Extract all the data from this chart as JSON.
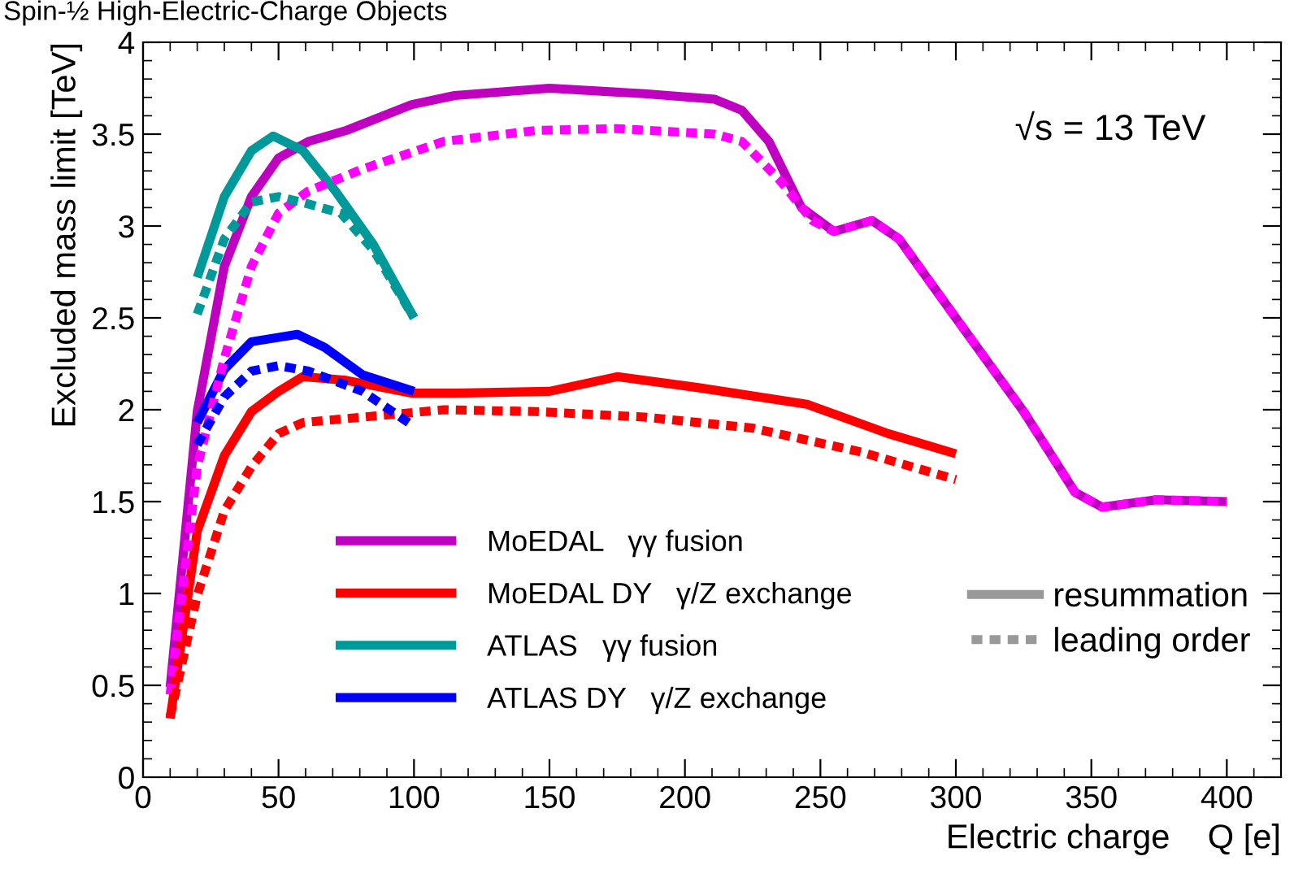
{
  "chart_data": {
    "type": "line",
    "title": "Spin-½ High-Electric-Charge Objects",
    "xlabel": "Electric charge    Q [e]",
    "ylabel": "Excluded mass limit [TeV]",
    "xlim": [
      0,
      420
    ],
    "ylim": [
      0,
      4
    ],
    "xticks": [
      0,
      50,
      100,
      150,
      200,
      250,
      300,
      350,
      400
    ],
    "yticks": [
      0,
      0.5,
      1,
      1.5,
      2,
      2.5,
      3,
      3.5,
      4
    ],
    "grid": false,
    "legend": "bottom left",
    "annotations": [
      "√s = 13 TeV",
      "resummation",
      "leading order"
    ],
    "series": [
      {
        "name": "MoEDAL   γγ fusion",
        "color": "#c000c0",
        "line_style": "solid",
        "x": [
          10,
          20,
          30,
          40,
          50,
          61,
          75,
          99,
          115,
          150,
          185,
          211,
          221,
          231,
          243,
          255,
          269,
          279,
          299,
          325,
          344,
          354,
          374,
          400
        ],
        "values": [
          0.49,
          1.99,
          2.78,
          3.16,
          3.37,
          3.46,
          3.52,
          3.66,
          3.71,
          3.75,
          3.72,
          3.69,
          3.63,
          3.46,
          3.1,
          2.97,
          3.03,
          2.93,
          2.52,
          1.99,
          1.55,
          1.47,
          1.51,
          1.5
        ]
      },
      {
        "name": "MoEDAL DY   γ/Z exchange",
        "color": "#ff0000",
        "line_style": "solid",
        "x": [
          10,
          20,
          30,
          40,
          50,
          59,
          75,
          99,
          115,
          150,
          175,
          205,
          245,
          275,
          300
        ],
        "values": [
          0.32,
          1.34,
          1.75,
          1.99,
          2.1,
          2.18,
          2.16,
          2.09,
          2.09,
          2.1,
          2.18,
          2.12,
          2.03,
          1.87,
          1.76
        ]
      },
      {
        "name": "ATLAS   γγ fusion",
        "color": "#009999",
        "line_style": "solid",
        "x": [
          20,
          30,
          40,
          48,
          59,
          71,
          85,
          100
        ],
        "values": [
          2.72,
          3.16,
          3.41,
          3.49,
          3.41,
          3.19,
          2.9,
          2.5
        ]
      },
      {
        "name": "ATLAS DY   γ/Z exchange",
        "color": "#0000ff",
        "line_style": "solid",
        "x": [
          20,
          30,
          40,
          57,
          67,
          81,
          100
        ],
        "values": [
          1.93,
          2.22,
          2.37,
          2.41,
          2.34,
          2.19,
          2.1
        ]
      },
      {
        "color": "#ff00ff",
        "line_style": "dashed",
        "x": [
          10,
          20,
          30,
          40,
          50,
          61,
          81,
          111,
          145,
          175,
          211,
          221,
          235,
          247,
          255,
          269,
          279,
          299,
          325,
          344,
          354,
          374,
          400
        ],
        "values": [
          0.45,
          1.69,
          2.28,
          2.78,
          3.07,
          3.19,
          3.31,
          3.46,
          3.52,
          3.53,
          3.5,
          3.46,
          3.25,
          3.03,
          2.97,
          3.03,
          2.93,
          2.52,
          1.99,
          1.55,
          1.47,
          1.51,
          1.5
        ]
      },
      {
        "color": "#ff0000",
        "line_style": "dashed",
        "x": [
          10,
          20,
          30,
          40,
          50,
          59,
          81,
          111,
          145,
          185,
          225,
          265,
          300
        ],
        "values": [
          0.33,
          0.99,
          1.45,
          1.69,
          1.87,
          1.93,
          1.96,
          2.0,
          1.99,
          1.96,
          1.9,
          1.77,
          1.62
        ]
      },
      {
        "color": "#009999",
        "line_style": "dashed",
        "x": [
          20,
          30,
          40,
          50,
          61,
          73,
          85,
          100
        ],
        "values": [
          2.52,
          2.93,
          3.13,
          3.16,
          3.12,
          3.07,
          2.87,
          2.5
        ]
      },
      {
        "color": "#0000ff",
        "line_style": "dashed",
        "x": [
          20,
          30,
          40,
          50,
          61,
          81,
          98
        ],
        "values": [
          1.81,
          2.07,
          2.21,
          2.24,
          2.21,
          2.1,
          1.93
        ]
      }
    ]
  }
}
